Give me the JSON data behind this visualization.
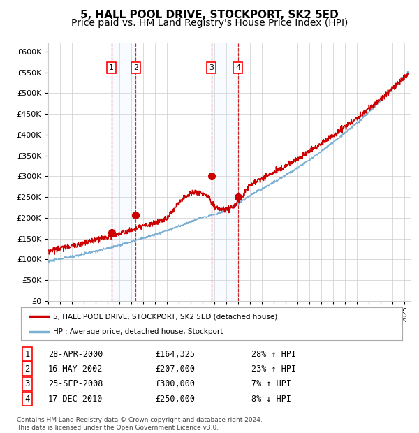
{
  "title": "5, HALL POOL DRIVE, STOCKPORT, SK2 5ED",
  "subtitle": "Price paid vs. HM Land Registry's House Price Index (HPI)",
  "ylim": [
    0,
    620000
  ],
  "yticks": [
    0,
    50000,
    100000,
    150000,
    200000,
    250000,
    300000,
    350000,
    400000,
    450000,
    500000,
    550000,
    600000
  ],
  "sale_dates_num": [
    2000.32,
    2002.37,
    2008.73,
    2010.96
  ],
  "sale_prices": [
    164325,
    207000,
    300000,
    250000
  ],
  "sale_labels": [
    "1",
    "2",
    "3",
    "4"
  ],
  "legend_entries": [
    "5, HALL POOL DRIVE, STOCKPORT, SK2 5ED (detached house)",
    "HPI: Average price, detached house, Stockport"
  ],
  "table_rows": [
    {
      "num": "1",
      "date": "28-APR-2000",
      "price": "£164,325",
      "change": "28% ↑ HPI"
    },
    {
      "num": "2",
      "date": "16-MAY-2002",
      "price": "£207,000",
      "change": "23% ↑ HPI"
    },
    {
      "num": "3",
      "date": "25-SEP-2008",
      "price": "£300,000",
      "change": "7% ↑ HPI"
    },
    {
      "num": "4",
      "date": "17-DEC-2010",
      "price": "£250,000",
      "change": "8% ↓ HPI"
    }
  ],
  "footnote": "Contains HM Land Registry data © Crown copyright and database right 2024.\nThis data is licensed under the Open Government Licence v3.0.",
  "red_line_color": "#cc0000",
  "blue_line_color": "#7bafd4",
  "shade_color": "#ddeeff",
  "vline_color": "#cc0000",
  "grid_color": "#cccccc",
  "background_color": "#ffffff",
  "title_fontsize": 11,
  "subtitle_fontsize": 10
}
